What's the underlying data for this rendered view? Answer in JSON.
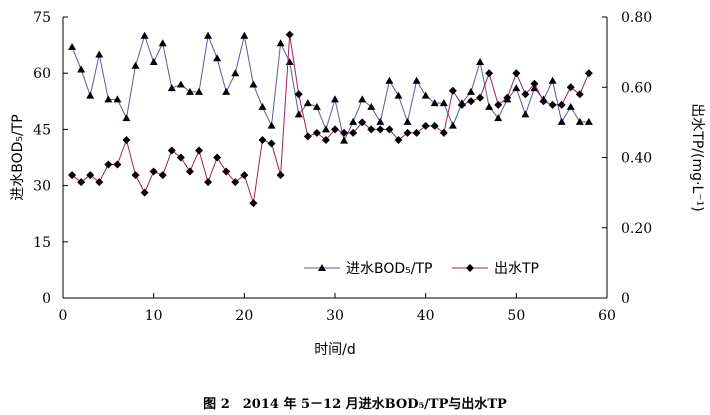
{
  "caption": "图 2　2014 年 5－12 月进水BOD₅/TP与出水TP",
  "chart_data": {
    "type": "line",
    "xlabel": "时间/d",
    "ylabel_left": "进水BOD₅/TP",
    "ylabel_right": "出水TP/(mg·L⁻¹)",
    "xlim": [
      0,
      60
    ],
    "ylim_left": [
      0,
      75
    ],
    "ylim_right": [
      0,
      0.8
    ],
    "xticks": [
      "0",
      "10",
      "20",
      "30",
      "40",
      "50",
      "60"
    ],
    "yticks_left": [
      "0",
      "15",
      "30",
      "45",
      "60",
      "75"
    ],
    "yticks_right": [
      "0",
      "0.20",
      "0.40",
      "0.60",
      "0.80"
    ],
    "legend_position": "center-right",
    "series": [
      {
        "name": "进水BOD₅/TP",
        "axis": "left",
        "marker": "triangle",
        "color": "#5a5a9e",
        "x": [
          1,
          2,
          3,
          4,
          5,
          6,
          7,
          8,
          9,
          10,
          11,
          12,
          13,
          14,
          15,
          16,
          17,
          18,
          19,
          20,
          21,
          22,
          23,
          24,
          25,
          26,
          27,
          28,
          29,
          30,
          31,
          32,
          33,
          34,
          35,
          36,
          37,
          38,
          39,
          40,
          41,
          42,
          43,
          44,
          45,
          46,
          47,
          48,
          49,
          50,
          51,
          52,
          53,
          54,
          55,
          56,
          57,
          58
        ],
        "values": [
          67,
          61,
          54,
          65,
          53,
          53,
          48,
          62,
          70,
          63,
          68,
          56,
          57,
          55,
          55,
          70,
          64,
          55,
          60,
          70,
          57,
          51,
          46,
          68,
          63,
          49,
          52,
          51,
          45,
          53,
          42,
          47,
          53,
          51,
          47,
          58,
          54,
          47,
          58,
          54,
          52,
          52,
          46,
          52,
          55,
          63,
          51,
          48,
          53,
          56,
          49,
          56,
          53,
          58,
          47,
          51,
          47,
          47
        ]
      },
      {
        "name": "出水TP",
        "axis": "right",
        "marker": "diamond",
        "color": "#a0205a",
        "x": [
          1,
          2,
          3,
          4,
          5,
          6,
          7,
          8,
          9,
          10,
          11,
          12,
          13,
          14,
          15,
          16,
          17,
          18,
          19,
          20,
          21,
          22,
          23,
          24,
          25,
          26,
          27,
          28,
          29,
          30,
          31,
          32,
          33,
          34,
          35,
          36,
          37,
          38,
          39,
          40,
          41,
          42,
          43,
          44,
          45,
          46,
          47,
          48,
          49,
          50,
          51,
          52,
          53,
          54,
          55,
          56,
          57,
          58
        ],
        "values": [
          0.35,
          0.33,
          0.35,
          0.33,
          0.38,
          0.38,
          0.45,
          0.35,
          0.3,
          0.36,
          0.35,
          0.42,
          0.4,
          0.36,
          0.42,
          0.33,
          0.4,
          0.36,
          0.33,
          0.35,
          0.27,
          0.45,
          0.44,
          0.35,
          0.75,
          0.58,
          0.46,
          0.47,
          0.45,
          0.48,
          0.47,
          0.47,
          0.5,
          0.48,
          0.48,
          0.48,
          0.45,
          0.47,
          0.47,
          0.49,
          0.49,
          0.47,
          0.59,
          0.55,
          0.56,
          0.57,
          0.64,
          0.55,
          0.57,
          0.64,
          0.58,
          0.61,
          0.56,
          0.55,
          0.55,
          0.6,
          0.58,
          0.64
        ]
      }
    ]
  }
}
